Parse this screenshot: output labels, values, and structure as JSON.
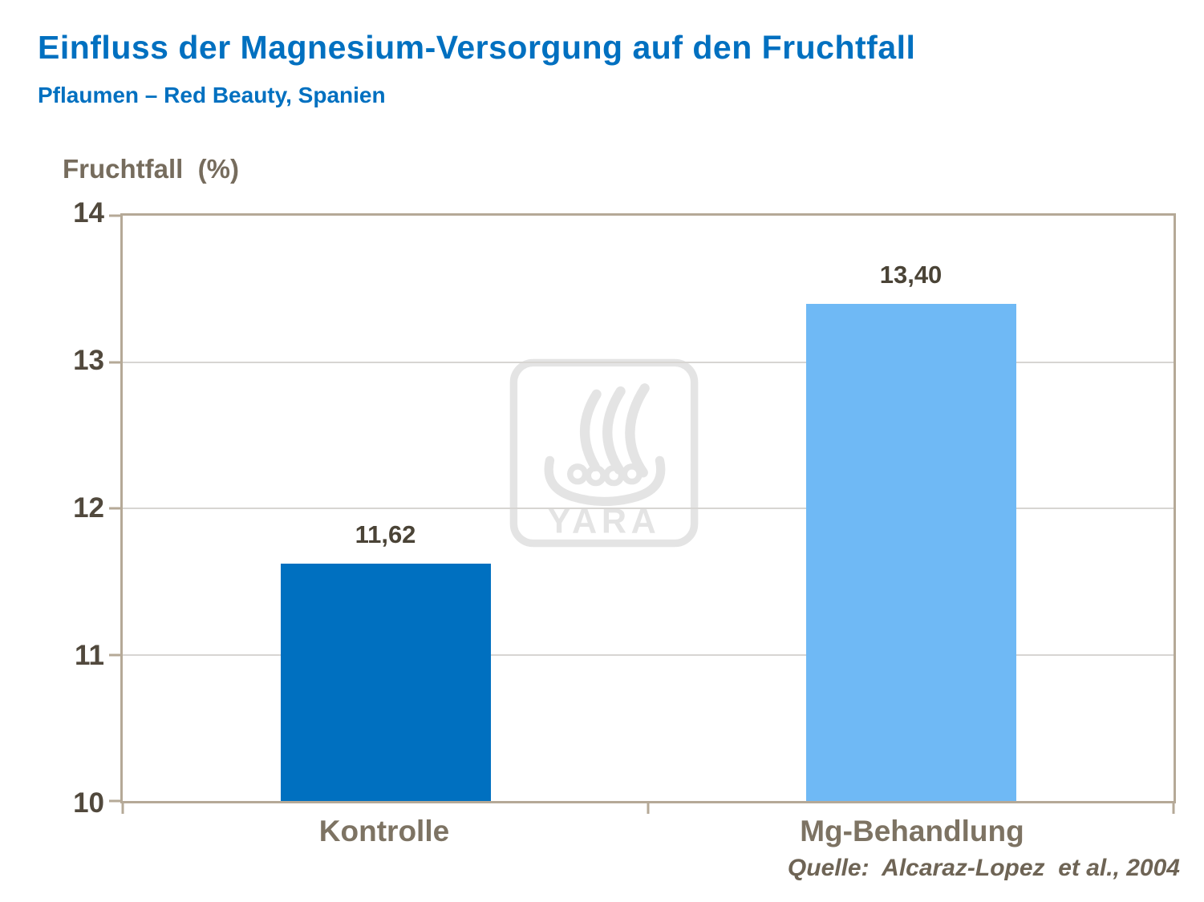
{
  "header": {
    "title": "Einfluss der Magnesium-Versorgung auf den Fruchtfall",
    "subtitle": "Pflaumen – Red Beauty, Spanien"
  },
  "chart_data": {
    "type": "bar",
    "title": "Einfluss der Magnesium-Versorgung auf den Fruchtfall",
    "subtitle": "Pflaumen – Red Beauty, Spanien",
    "ylabel": "Fruchtfall  (%)",
    "xlabel": "",
    "categories": [
      "Kontrolle",
      "Mg-Behandlung"
    ],
    "values": [
      11.62,
      13.4
    ],
    "value_labels": [
      "11,62",
      "13,40"
    ],
    "bar_colors": [
      "#0070C0",
      "#6FB9F5"
    ],
    "bar_width_pct": 20,
    "ylim": [
      10,
      14
    ],
    "yticks": [
      10,
      11,
      12,
      13,
      14
    ],
    "grid": true,
    "legend": "none",
    "source": "Quelle:  Alcaraz-Lopez  et al., 2004"
  },
  "watermark": {
    "label": "YARA"
  },
  "footer": {
    "source": "Quelle:  Alcaraz-Lopez  et al., 2004"
  }
}
